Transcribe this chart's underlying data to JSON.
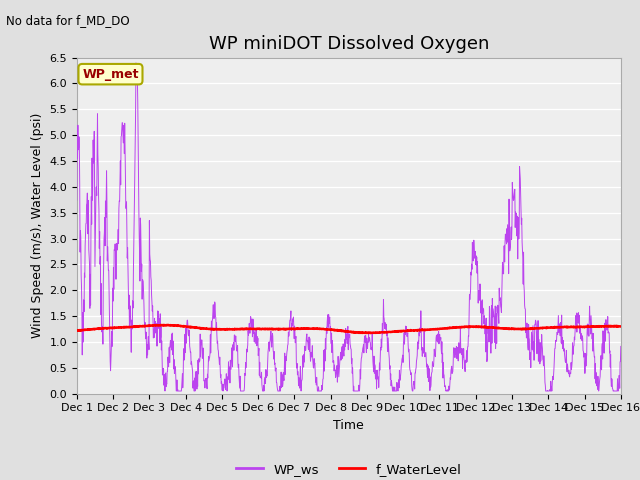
{
  "title": "WP miniDOT Dissolved Oxygen",
  "no_data_label": "No data for f_MD_DO",
  "xlabel": "Time",
  "ylabel": "Wind Speed (m/s), Water Level (psi)",
  "ylim": [
    0.0,
    6.5
  ],
  "yticks": [
    0.0,
    0.5,
    1.0,
    1.5,
    2.0,
    2.5,
    3.0,
    3.5,
    4.0,
    4.5,
    5.0,
    5.5,
    6.0,
    6.5
  ],
  "xtick_labels": [
    "Dec 1",
    "Dec 2",
    "Dec 3",
    "Dec 4",
    "Dec 5",
    "Dec 6",
    "Dec 7",
    "Dec 8",
    "Dec 9",
    "Dec 10",
    "Dec 11",
    "Dec 12",
    "Dec 13",
    "Dec 14",
    "Dec 15",
    "Dec 16"
  ],
  "legend_ws_label": "WP_ws",
  "legend_wl_label": "f_WaterLevel",
  "legend_box_label": "WP_met",
  "legend_box_facecolor": "#ffffcc",
  "legend_box_edgecolor": "#aaa800",
  "ws_color": "#bb44ee",
  "wl_color": "#ff0000",
  "fig_facecolor": "#e0e0e0",
  "plot_bg_color": "#eeeeee",
  "title_fontsize": 13,
  "axis_fontsize": 9,
  "tick_fontsize": 8,
  "n_points": 1500,
  "xlim": [
    0,
    15
  ]
}
